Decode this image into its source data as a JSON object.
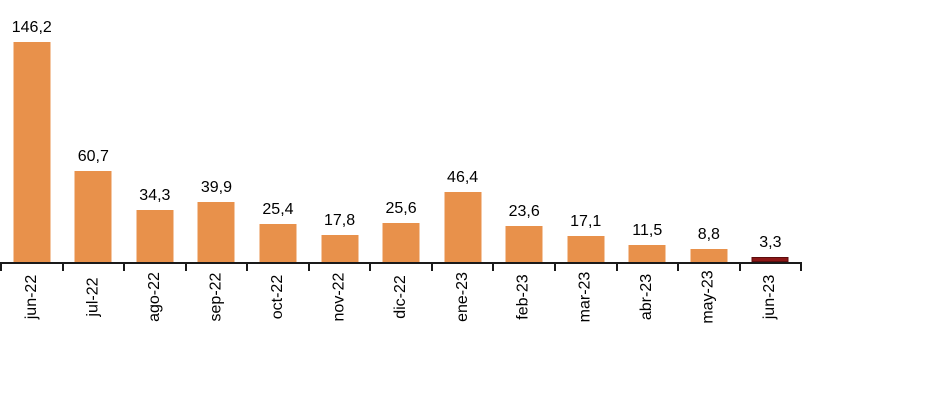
{
  "chart_data": {
    "type": "bar",
    "title": "",
    "xlabel": "",
    "ylabel": "",
    "categories": [
      "jun-22",
      "jul-22",
      "ago-22",
      "sep-22",
      "oct-22",
      "nov-22",
      "dic-22",
      "ene-23",
      "feb-23",
      "mar-23",
      "abr-23",
      "may-23",
      "jun-23"
    ],
    "values": [
      146.2,
      60.7,
      34.3,
      39.9,
      25.4,
      17.8,
      25.6,
      46.4,
      23.6,
      17.1,
      11.5,
      8.8,
      3.3
    ],
    "value_labels": [
      "146,2",
      "60,7",
      "34,3",
      "39,9",
      "25,4",
      "17,8",
      "25,6",
      "46,4",
      "23,6",
      "17,1",
      "11,5",
      "8,8",
      "3,3"
    ],
    "decimal_separator": ",",
    "ylim": [
      0,
      150
    ],
    "grid": false,
    "legend": "none",
    "y_axis_visible": false,
    "x_label_rotation_deg": -90,
    "highlight_index": 12,
    "colors": {
      "bar": "#e8914b",
      "highlight_bar": "#8c1717",
      "highlight_bar_border": "#5c0d0d",
      "axis": "#1a1a1a",
      "text": "#000000",
      "background": "#ffffff"
    }
  }
}
